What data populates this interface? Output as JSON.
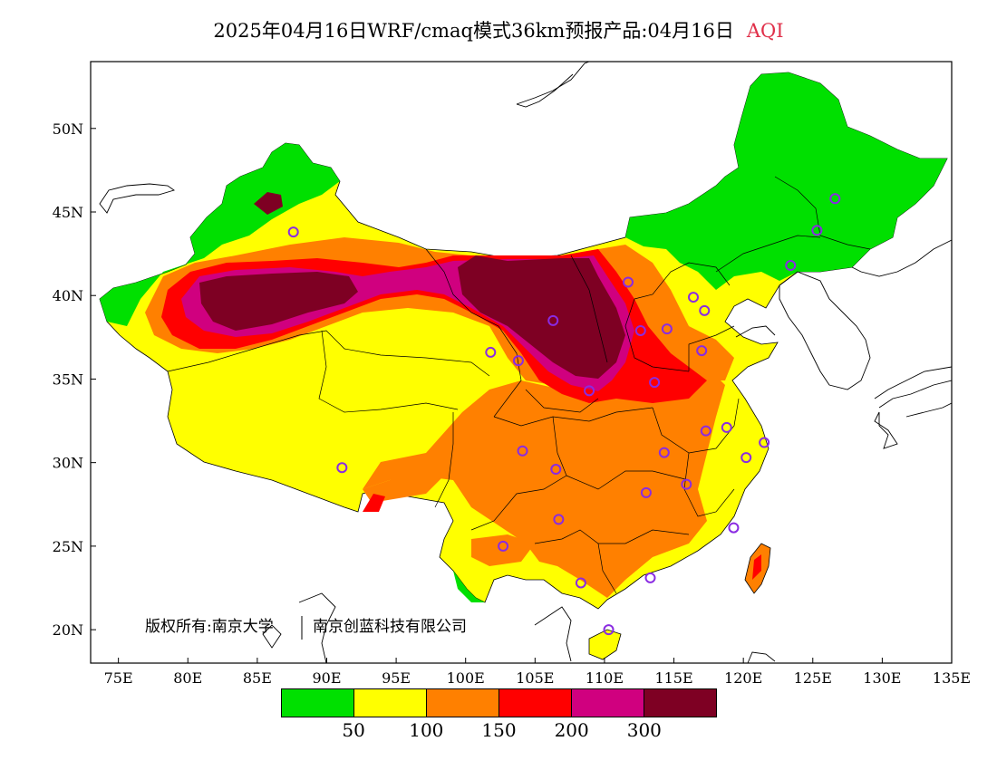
{
  "title": {
    "main": "2025年04月16日WRF/cmaq模式36km预报产品:04月16日",
    "product": "AQI"
  },
  "axes": {
    "lat_labels": [
      "50N",
      "45N",
      "40N",
      "35N",
      "30N",
      "25N",
      "20N"
    ],
    "lon_labels": [
      "75E",
      "80E",
      "85E",
      "90E",
      "95E",
      "100E",
      "105E",
      "110E",
      "115E",
      "120E",
      "125E",
      "130E",
      "135E"
    ],
    "lon_range": [
      73,
      135
    ],
    "lat_range": [
      18,
      54
    ]
  },
  "copyright": {
    "owner1": "版权所有:南京大学",
    "owner2": "南京创蓝科技有限公司"
  },
  "legend": {
    "colors": [
      "#00e000",
      "#ffff00",
      "#ff8000",
      "#ff0000",
      "#d0007f",
      "#7e0023"
    ],
    "labels": [
      "50",
      "100",
      "150",
      "200",
      "300"
    ]
  },
  "stations": [
    {
      "lon": 87.6,
      "lat": 43.8
    },
    {
      "lon": 91.1,
      "lat": 29.7
    },
    {
      "lon": 101.8,
      "lat": 36.6
    },
    {
      "lon": 103.8,
      "lat": 36.1
    },
    {
      "lon": 106.3,
      "lat": 38.5
    },
    {
      "lon": 111.7,
      "lat": 40.8
    },
    {
      "lon": 112.6,
      "lat": 37.9
    },
    {
      "lon": 114.5,
      "lat": 38.0
    },
    {
      "lon": 116.4,
      "lat": 39.9
    },
    {
      "lon": 117.2,
      "lat": 39.1
    },
    {
      "lon": 117.0,
      "lat": 36.7
    },
    {
      "lon": 113.6,
      "lat": 34.8
    },
    {
      "lon": 108.9,
      "lat": 34.3
    },
    {
      "lon": 104.1,
      "lat": 30.7
    },
    {
      "lon": 106.5,
      "lat": 29.6
    },
    {
      "lon": 114.3,
      "lat": 30.6
    },
    {
      "lon": 117.3,
      "lat": 31.9
    },
    {
      "lon": 118.8,
      "lat": 32.1
    },
    {
      "lon": 121.5,
      "lat": 31.2
    },
    {
      "lon": 120.2,
      "lat": 30.3
    },
    {
      "lon": 115.9,
      "lat": 28.7
    },
    {
      "lon": 113.0,
      "lat": 28.2
    },
    {
      "lon": 119.3,
      "lat": 26.1
    },
    {
      "lon": 106.7,
      "lat": 26.6
    },
    {
      "lon": 102.7,
      "lat": 25.0
    },
    {
      "lon": 108.3,
      "lat": 22.8
    },
    {
      "lon": 113.3,
      "lat": 23.1
    },
    {
      "lon": 110.3,
      "lat": 20.0
    },
    {
      "lon": 123.4,
      "lat": 41.8
    },
    {
      "lon": 125.3,
      "lat": 43.9
    },
    {
      "lon": 126.6,
      "lat": 45.8
    }
  ]
}
